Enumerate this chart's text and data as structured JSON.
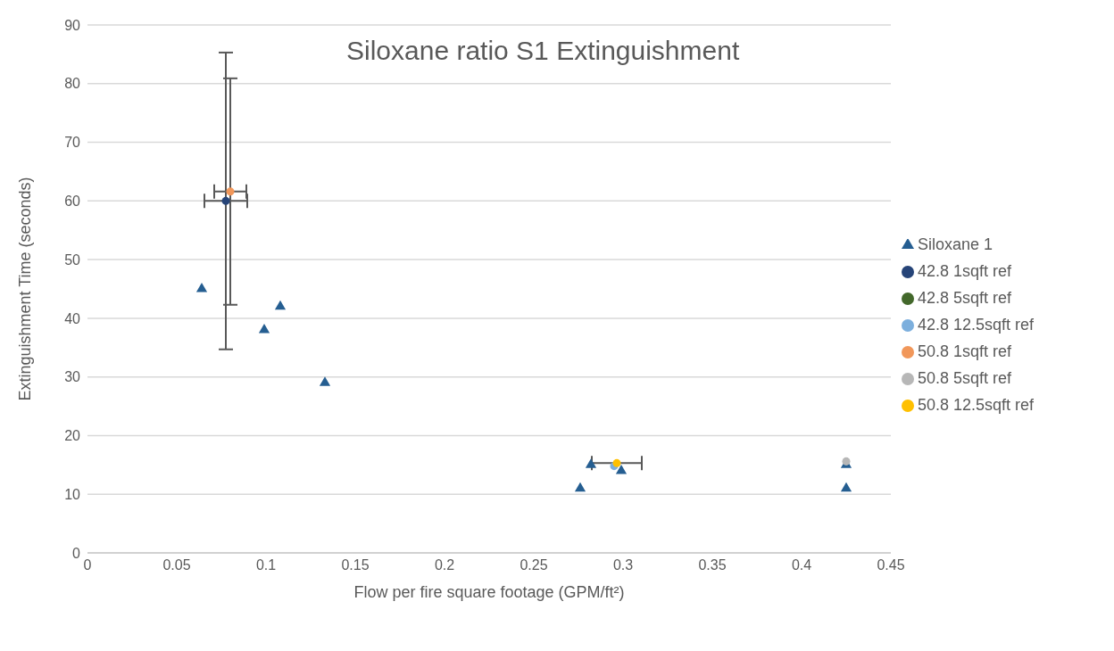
{
  "chart_data": {
    "type": "scatter",
    "title": "Siloxane ratio S1 Extinguishment",
    "xlabel": "Flow per fire square footage (GPM/ft²)",
    "ylabel": "Extinguishment Time (seconds)",
    "xlim": [
      0,
      0.45
    ],
    "xticks": [
      0,
      0.05,
      0.1,
      0.15,
      0.2,
      0.25,
      0.3,
      0.35,
      0.4,
      0.45
    ],
    "ylim": [
      0,
      90
    ],
    "yticks": [
      0,
      10,
      20,
      30,
      40,
      50,
      60,
      70,
      80,
      90
    ],
    "grid": "y",
    "legend": "right",
    "series": [
      {
        "name": "Siloxane 1",
        "color": "#255e91",
        "marker": "triangle",
        "x": [
          0.064,
          0.099,
          0.108,
          0.133,
          0.276,
          0.282,
          0.299,
          0.425,
          0.425
        ],
        "values": [
          45,
          38,
          42,
          29,
          11,
          15,
          14,
          15,
          11
        ]
      },
      {
        "name": "42.8 1sqft ref",
        "color": "#264478",
        "marker": "circle",
        "x": [
          0.0775
        ],
        "values": [
          60
        ],
        "errors": [
          25.3
        ],
        "xerrors": [
          0.012
        ]
      },
      {
        "name": "42.8 5sqft ref",
        "color": "#43682b",
        "marker": "circle"
      },
      {
        "name": "42.8 12.5sqft ref",
        "color": "#7cafdd",
        "marker": "circle",
        "x": [
          0.295
        ],
        "values": [
          14.8
        ]
      },
      {
        "name": "50.8 1sqft ref",
        "color": "#f1975a",
        "marker": "circle",
        "x": [
          0.08
        ],
        "values": [
          61.6
        ],
        "errors": [
          19.3
        ],
        "xerrors": [
          0.009
        ]
      },
      {
        "name": "50.8 5sqft ref",
        "color": "#b7b7b7",
        "marker": "circle",
        "x": [
          0.425
        ],
        "values": [
          15.6
        ]
      },
      {
        "name": "50.8 12.5sqft ref",
        "color": "#ffc000",
        "marker": "circle",
        "x": [
          0.2965
        ],
        "values": [
          15.3
        ],
        "xerrors": [
          0.014
        ]
      }
    ]
  }
}
